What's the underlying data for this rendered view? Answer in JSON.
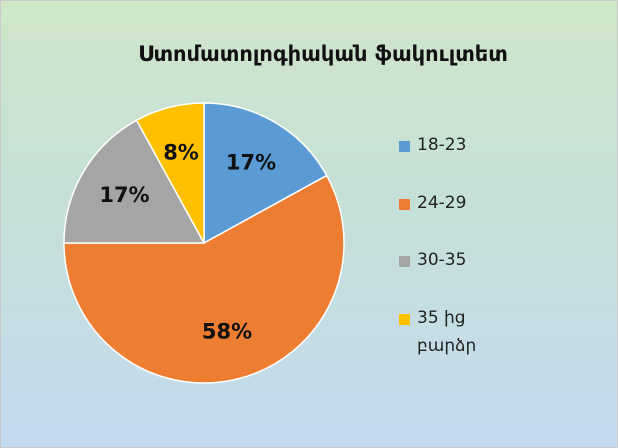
{
  "chart_data": {
    "type": "pie",
    "title": "Ստոմատոլոգիական ֆակուլտետ",
    "categories": [
      "18-23",
      "24-29",
      "30-35",
      "35 ից բարձր"
    ],
    "values": [
      17,
      58,
      17,
      8
    ],
    "value_labels": [
      "17%",
      "58%",
      "17%",
      "8%"
    ],
    "colors": [
      "#5b9bd5",
      "#ed7d31",
      "#a5a5a5",
      "#ffc000"
    ],
    "legend": "right"
  }
}
